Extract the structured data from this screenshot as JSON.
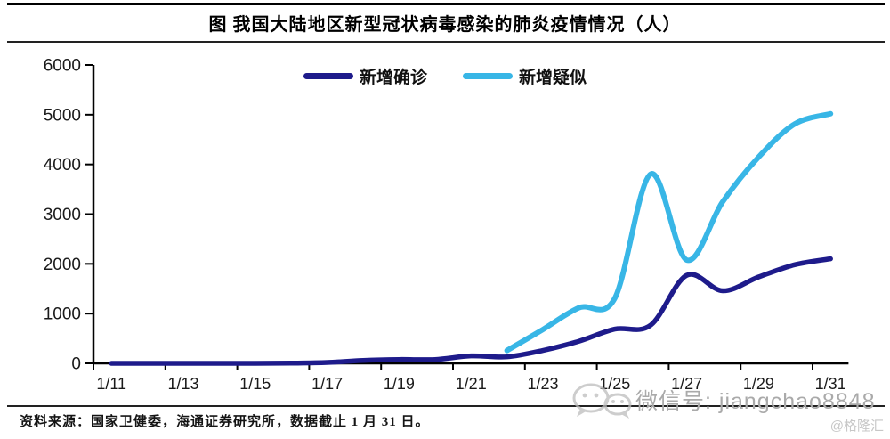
{
  "header": {
    "title": "图 我国大陆地区新型冠状病毒感染的肺炎疫情情况（人）"
  },
  "footer": {
    "source_note": "资料来源：国家卫健委，海通证券研究所，数据截止 1 月 31 日。"
  },
  "watermark": {
    "wechat_text": "微信号: jiangchao8848",
    "brand_text": "@格隆汇"
  },
  "chart_data": {
    "type": "line",
    "title": "图 我国大陆地区新型冠状病毒感染的肺炎疫情情况（人）",
    "categories": [
      "1/11",
      "1/12",
      "1/13",
      "1/14",
      "1/15",
      "1/16",
      "1/17",
      "1/18",
      "1/19",
      "1/20",
      "1/21",
      "1/22",
      "1/23",
      "1/24",
      "1/25",
      "1/26",
      "1/27",
      "1/28",
      "1/29",
      "1/30",
      "1/31"
    ],
    "x_tick_labels": [
      "1/11",
      "1/13",
      "1/15",
      "1/17",
      "1/19",
      "1/21",
      "1/23",
      "1/25",
      "1/27",
      "1/29",
      "1/31"
    ],
    "y_tick_labels": [
      "0",
      "1000",
      "2000",
      "3000",
      "4000",
      "5000",
      "6000"
    ],
    "ylim": [
      0,
      6000
    ],
    "ytick_step": 1000,
    "grid": false,
    "smooth": true,
    "legend_position": "top-center",
    "series": [
      {
        "name": "新增确诊",
        "color": "#1E1B8B",
        "values": [
          0,
          0,
          0,
          0,
          0,
          4,
          17,
          59,
          77,
          77,
          149,
          131,
          259,
          444,
          688,
          769,
          1771,
          1459,
          1737,
          1982,
          2102
        ]
      },
      {
        "name": "新增疑似",
        "color": "#38B6E6",
        "values": [
          null,
          null,
          null,
          null,
          null,
          null,
          null,
          null,
          null,
          null,
          null,
          257,
          680,
          1118,
          1309,
          3806,
          2077,
          3248,
          4148,
          4812,
          5019
        ]
      }
    ],
    "axis_color": "#000000",
    "label_color": "#1a1a1a"
  }
}
